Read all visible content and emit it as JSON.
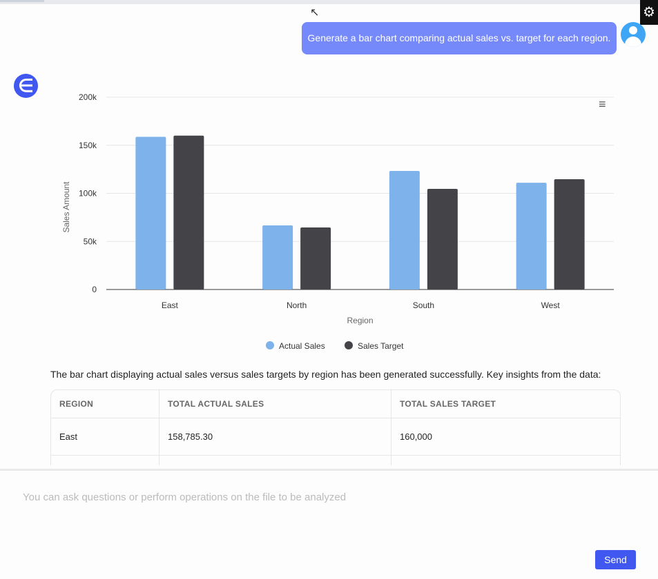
{
  "conversation": {
    "user_message": "Generate a bar chart comparing actual sales vs. target for each region.",
    "insight_text": "The bar chart displaying actual sales versus sales targets by region has been generated successfully. Key insights from the data:"
  },
  "icons": {
    "settings": "gear-icon",
    "user": "user-avatar-icon",
    "bot": "bot-logo-icon",
    "chart_menu": "hamburger-menu-icon"
  },
  "colors": {
    "actual": "#7eb2ea",
    "target": "#434348",
    "accent": "#4058f0",
    "user_bubble": "#7589fb"
  },
  "chart_data": {
    "type": "bar",
    "categories": [
      "East",
      "North",
      "South",
      "West"
    ],
    "series": [
      {
        "name": "Actual Sales",
        "values": [
          158785.3,
          66700,
          123300,
          111000
        ]
      },
      {
        "name": "Sales Target",
        "values": [
          160000,
          64500,
          104700,
          114700
        ]
      }
    ],
    "xlabel": "Region",
    "ylabel": "Sales Amount",
    "ylim": [
      0,
      200000
    ],
    "yticks": [
      {
        "v": 0,
        "label": "0"
      },
      {
        "v": 50000,
        "label": "50k"
      },
      {
        "v": 100000,
        "label": "100k"
      },
      {
        "v": 150000,
        "label": "150k"
      },
      {
        "v": 200000,
        "label": "200k"
      }
    ],
    "grid": true,
    "legend": "bottom"
  },
  "table": {
    "headers": [
      "REGION",
      "TOTAL ACTUAL SALES",
      "TOTAL SALES TARGET"
    ],
    "rows": [
      [
        "East",
        "158,785.30",
        "160,000"
      ]
    ]
  },
  "input": {
    "placeholder": "You can ask questions or perform operations on the file to be analyzed",
    "send_label": "Send"
  }
}
